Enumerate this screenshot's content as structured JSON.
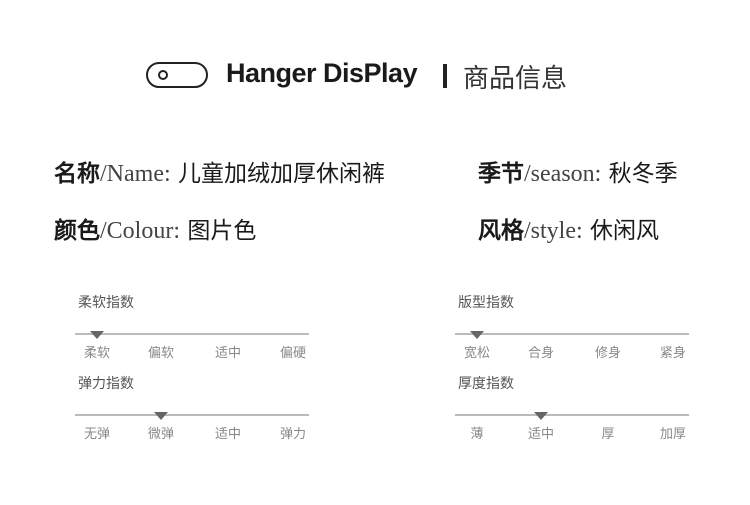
{
  "header": {
    "brand": "Hanger DisPlay",
    "title": "商品信息",
    "icon": "toggle-pill-icon"
  },
  "info": [
    {
      "key": "名称",
      "sep": "/Name:",
      "value": "儿童加绒加厚休闲裤"
    },
    {
      "key": "季节",
      "sep": "/season:",
      "value": "秋冬季"
    },
    {
      "key": "颜色",
      "sep": "/Colour:",
      "value": "图片色"
    },
    {
      "key": "风格",
      "sep": "/style:",
      "value": "休闲风"
    }
  ],
  "scales": [
    {
      "title": "柔软指数",
      "labels": [
        "柔软",
        "偏软",
        "适中",
        "偏硬"
      ],
      "selected_index": 0
    },
    {
      "title": "版型指数",
      "labels": [
        "宽松",
        "合身",
        "修身",
        "紧身"
      ],
      "selected_index": 0
    },
    {
      "title": "弹力指数",
      "labels": [
        "无弹",
        "微弹",
        "适中",
        "弹力"
      ],
      "selected_index": 1
    },
    {
      "title": "厚度指数",
      "labels": [
        "薄",
        "适中",
        "厚",
        "加厚"
      ],
      "selected_index": 1
    }
  ],
  "colors": {
    "text": "#1a1a1a",
    "line": "#bbbbbb",
    "marker": "#666666"
  }
}
